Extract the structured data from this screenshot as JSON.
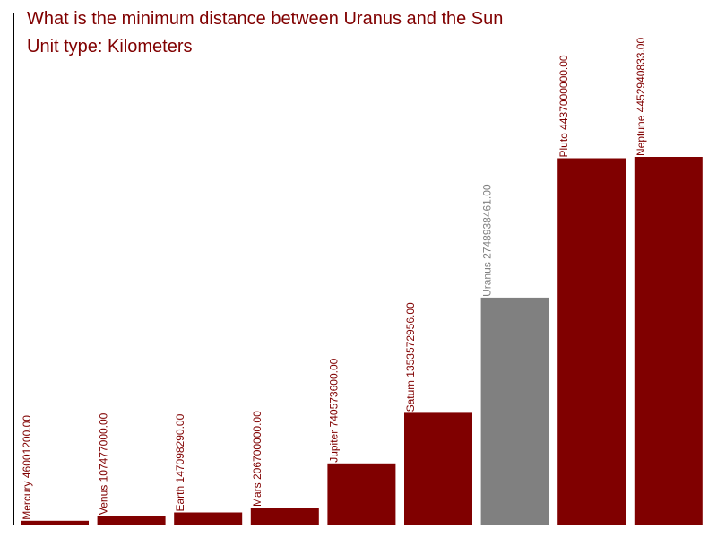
{
  "title_line1": "What is the minimum distance between Uranus and the Sun",
  "title_line2": "Unit type: Kilometers",
  "colors": {
    "bar": "#800000",
    "highlight": "#808080",
    "axis": "#000000",
    "title": "#800000"
  },
  "chart_data": {
    "type": "bar",
    "title": "What is the minimum distance between Uranus and the Sun",
    "subtitle": "Unit type: Kilometers",
    "xlabel": "",
    "ylabel": "",
    "grid": false,
    "highlight": "Uranus",
    "categories": [
      "Mercury",
      "Venus",
      "Earth",
      "Mars",
      "Jupiter",
      "Saturn",
      "Uranus",
      "Pluto",
      "Neptune"
    ],
    "values": [
      46001200.0,
      107477000.0,
      147098290.0,
      206700000.0,
      740573600.0,
      1353572956.0,
      2748938461.0,
      4437000000.0,
      4452940833.0
    ],
    "labels": [
      "Mercury 46001200.00",
      "Venus 107477000.00",
      "Earth 147098290.00",
      "Mars 206700000.00",
      "Jupiter 740573600.00",
      "Saturn 1353572956.00",
      "Uranus 2748938461.00",
      "Pluto 4437000000.00",
      "Neptune 4452940833.00"
    ]
  }
}
